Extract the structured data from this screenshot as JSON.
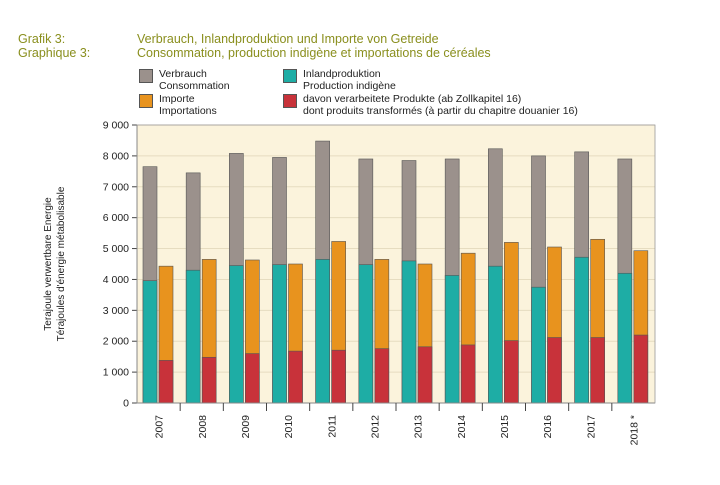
{
  "header": {
    "label_de": "Grafik 3:",
    "label_fr": "Graphique 3:",
    "title_de": "Verbrauch, Inlandproduktion und Importe von Getreide",
    "title_fr": "Consommation, production indigène et importations de céréales"
  },
  "legend": [
    {
      "line1": "Verbrauch",
      "line2": "Consommation",
      "color": "#9b918c"
    },
    {
      "line1": "Importe",
      "line2": "Importations",
      "color": "#e8931e"
    },
    {
      "line1": "Inlandproduktion",
      "line2": "Production indigène",
      "color": "#1eada5"
    },
    {
      "line1": "davon verarbeitete Produkte (ab Zollkapitel 16)",
      "line2": "dont produits transformés (à partir du chapitre douanier 16)",
      "color": "#c8323a"
    }
  ],
  "colors": {
    "plot_bg": "#fbf3dc",
    "grid": "#e6dcc0",
    "axis": "#444444"
  },
  "chart_data": {
    "type": "bar",
    "ylabel": "Terajoule verwertbare Energie",
    "ylabel2": "Térajoules d'énergie métabolisable",
    "ylim": [
      0,
      9000
    ],
    "yticks": [
      0,
      1000,
      2000,
      3000,
      4000,
      5000,
      6000,
      7000,
      8000,
      9000
    ],
    "ytick_labels": [
      "0",
      "1 000",
      "2 000",
      "3 000",
      "4 000",
      "5 000",
      "6 000",
      "7 000",
      "8 000",
      "9 000"
    ],
    "grid": true,
    "categories": [
      "2007",
      "2008",
      "2009",
      "2010",
      "2011",
      "2012",
      "2013",
      "2014",
      "2015",
      "2016",
      "2017",
      "2018 *"
    ],
    "series": [
      {
        "name": "Verbrauch / Consommation",
        "values": [
          7650,
          7450,
          8080,
          7950,
          8480,
          7900,
          7850,
          7900,
          8230,
          8000,
          8130,
          7900
        ]
      },
      {
        "name": "Inlandproduktion / Production indigène",
        "values": [
          3960,
          4300,
          4450,
          4480,
          4650,
          4480,
          4600,
          4130,
          4430,
          3750,
          4720,
          4200
        ]
      },
      {
        "name": "Importe / Importations",
        "values": [
          4430,
          4650,
          4630,
          4500,
          5230,
          4650,
          4500,
          4850,
          5200,
          5050,
          5300,
          4930
        ]
      },
      {
        "name": "davon verarbeitete Produkte / dont produits transformés",
        "values": [
          1380,
          1480,
          1600,
          1680,
          1710,
          1760,
          1820,
          1880,
          2020,
          2120,
          2120,
          2200
        ]
      }
    ]
  }
}
